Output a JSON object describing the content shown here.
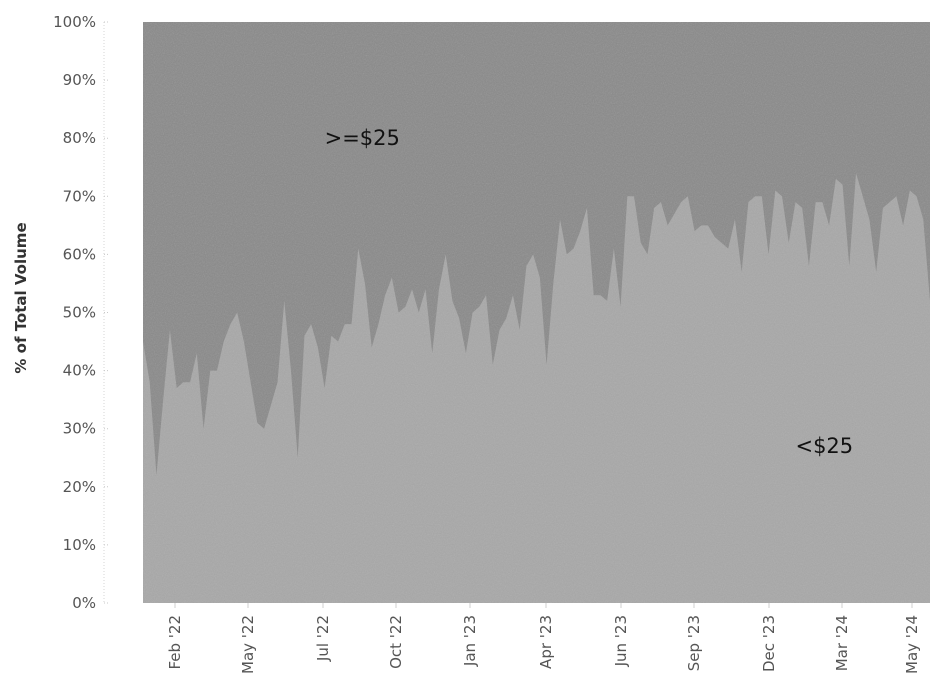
{
  "chart_data": {
    "type": "area",
    "ylabel": "% of Total Volume",
    "xlabel": "",
    "ylim": [
      0,
      100
    ],
    "y_ticks": [
      "0%",
      "10%",
      "20%",
      "30%",
      "40%",
      "50%",
      "60%",
      "70%",
      "80%",
      "90%",
      "100%"
    ],
    "x_tick_labels": [
      "Feb '22",
      "May '22",
      "Jul '22",
      "Oct '22",
      "Jan '23",
      "Apr '23",
      "Jun '23",
      "Sep '23",
      "Dec '23",
      "Mar '24",
      "May '24"
    ],
    "stacked": true,
    "normalized": true,
    "series": [
      {
        "name": "<$25",
        "color": "#a8a8a8",
        "values": [
          45,
          38,
          22,
          35,
          47,
          37,
          38,
          38,
          43,
          30,
          40,
          40,
          45,
          48,
          50,
          45,
          38,
          31,
          30,
          34,
          38,
          52,
          40,
          25,
          46,
          48,
          44,
          37,
          46,
          45,
          48,
          48,
          61,
          55,
          44,
          48,
          53,
          56,
          50,
          51,
          54,
          50,
          54,
          43,
          54,
          60,
          52,
          49,
          43,
          50,
          51,
          53,
          41,
          47,
          49,
          53,
          47,
          58,
          60,
          56,
          41,
          55,
          66,
          60,
          61,
          64,
          68,
          53,
          53,
          52,
          61,
          51,
          70,
          70,
          62,
          60,
          68,
          69,
          65,
          67,
          69,
          70,
          64,
          65,
          65,
          63,
          62,
          61,
          66,
          57,
          69,
          70,
          70,
          60,
          71,
          70,
          62,
          69,
          68,
          58,
          69,
          69,
          65,
          73,
          72,
          58,
          74,
          70,
          66,
          57,
          68,
          69,
          70,
          65,
          71,
          70,
          66,
          52
        ]
      },
      {
        "name": ">=$25",
        "color": "#8a8a8a",
        "values": [
          55,
          62,
          78,
          65,
          53,
          63,
          62,
          62,
          57,
          70,
          60,
          60,
          55,
          52,
          50,
          55,
          62,
          69,
          70,
          66,
          62,
          48,
          60,
          75,
          54,
          52,
          56,
          63,
          54,
          55,
          52,
          52,
          39,
          45,
          56,
          52,
          47,
          44,
          50,
          49,
          46,
          50,
          46,
          57,
          46,
          40,
          48,
          51,
          57,
          50,
          49,
          47,
          59,
          53,
          51,
          47,
          53,
          42,
          40,
          44,
          59,
          45,
          34,
          40,
          39,
          36,
          32,
          47,
          47,
          48,
          39,
          49,
          30,
          30,
          38,
          40,
          32,
          31,
          35,
          33,
          31,
          30,
          36,
          35,
          35,
          37,
          38,
          39,
          34,
          43,
          31,
          30,
          30,
          40,
          29,
          30,
          38,
          31,
          32,
          42,
          31,
          31,
          35,
          27,
          28,
          42,
          26,
          30,
          34,
          43,
          32,
          31,
          30,
          35,
          29,
          30,
          34,
          48
        ]
      }
    ],
    "annotations": [
      {
        "text": ">=$25",
        "x_index": 27,
        "y": 80
      },
      {
        "text": "<$25",
        "x_index": 97,
        "y": 27
      }
    ],
    "grid": false
  }
}
